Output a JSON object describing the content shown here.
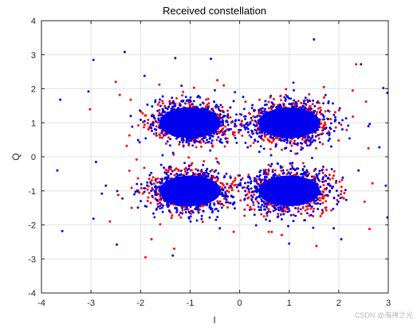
{
  "chart_data": {
    "type": "scatter",
    "title": "Received constellation",
    "xlabel": "I",
    "ylabel": "Q",
    "xlim": [
      -4,
      3
    ],
    "ylim": [
      -4,
      4
    ],
    "xticks": [
      "-4",
      "-3",
      "-2",
      "-1",
      "0",
      "1",
      "2",
      "3"
    ],
    "yticks": [
      "-4",
      "-3",
      "-2",
      "-1",
      "0",
      "1",
      "2",
      "3",
      "4"
    ],
    "grid": true,
    "legend": "none",
    "series": [
      {
        "color": "#ff0000",
        "symbol_centers": [
          [
            -1,
            1
          ],
          [
            1,
            1
          ],
          [
            -1,
            -1
          ],
          [
            1,
            -1
          ]
        ],
        "spread_std": [
          0.42,
          0.32
        ],
        "points": [
          [
            -2.42,
            1.82
          ],
          [
            -2.2,
            1.68
          ],
          [
            -2.28,
            0.32
          ],
          [
            -2.08,
            -0.08
          ],
          [
            -1.62,
            2.12
          ],
          [
            -0.32,
            2.1
          ],
          [
            0.12,
            1.62
          ],
          [
            0.22,
            0.32
          ],
          [
            1.7,
            2.05
          ],
          [
            2.28,
            1.95
          ],
          [
            2.55,
            1.62
          ],
          [
            2.6,
            0.25
          ],
          [
            -2.45,
            -1.12
          ],
          [
            -2.18,
            -1.5
          ],
          [
            -1.78,
            -2.42
          ],
          [
            -1.32,
            -2.7
          ],
          [
            -0.12,
            -2.2
          ],
          [
            -0.08,
            -0.82
          ],
          [
            0.1,
            -1.55
          ],
          [
            1.55,
            -2.62
          ],
          [
            2.52,
            -1.32
          ],
          [
            2.68,
            -0.78
          ],
          [
            2.62,
            -2.12
          ],
          [
            -3.02,
            1.4
          ],
          [
            -2.62,
            -1.9
          ],
          [
            -1.9,
            -2.95
          ],
          [
            -2.5,
            2.2
          ],
          [
            2.35,
            2.72
          ],
          [
            0.85,
            -2.3
          ],
          [
            -0.45,
            2.25
          ]
        ]
      },
      {
        "color": "#0000ee",
        "symbol_centers": [
          [
            -1,
            1
          ],
          [
            1,
            1
          ],
          [
            -1,
            -1
          ],
          [
            1,
            -1
          ]
        ],
        "spread_std": [
          0.42,
          0.32
        ],
        "points": [
          [
            -3.62,
            1.68
          ],
          [
            -3.68,
            -0.4
          ],
          [
            -3.58,
            -2.18
          ],
          [
            -2.95,
            2.85
          ],
          [
            -2.32,
            3.08
          ],
          [
            -1.92,
            2.38
          ],
          [
            -1.3,
            2.9
          ],
          [
            -0.58,
            2.88
          ],
          [
            1.5,
            3.45
          ],
          [
            2.45,
            2.72
          ],
          [
            2.9,
            2.02
          ],
          [
            2.98,
            1.88
          ],
          [
            2.82,
            0.28
          ],
          [
            -3.05,
            1.92
          ],
          [
            -2.9,
            -0.15
          ],
          [
            -2.78,
            -1.08
          ],
          [
            -2.95,
            -1.82
          ],
          [
            -2.48,
            -2.58
          ],
          [
            -1.35,
            -2.9
          ],
          [
            2.95,
            -0.85
          ],
          [
            2.98,
            -1.78
          ],
          [
            2.05,
            -2.42
          ],
          [
            -0.4,
            -2.1
          ],
          [
            0.3,
            -1.7
          ],
          [
            1.9,
            -2.1
          ],
          [
            2.4,
            -0.4
          ],
          [
            -2.2,
            1.2
          ],
          [
            -0.1,
            0.9
          ],
          [
            0.0,
            -0.55
          ],
          [
            1.0,
            -2.55
          ],
          [
            -2.7,
            -0.85
          ],
          [
            2.6,
            0.9
          ]
        ]
      }
    ]
  },
  "watermark": "CSDN @海神之光"
}
